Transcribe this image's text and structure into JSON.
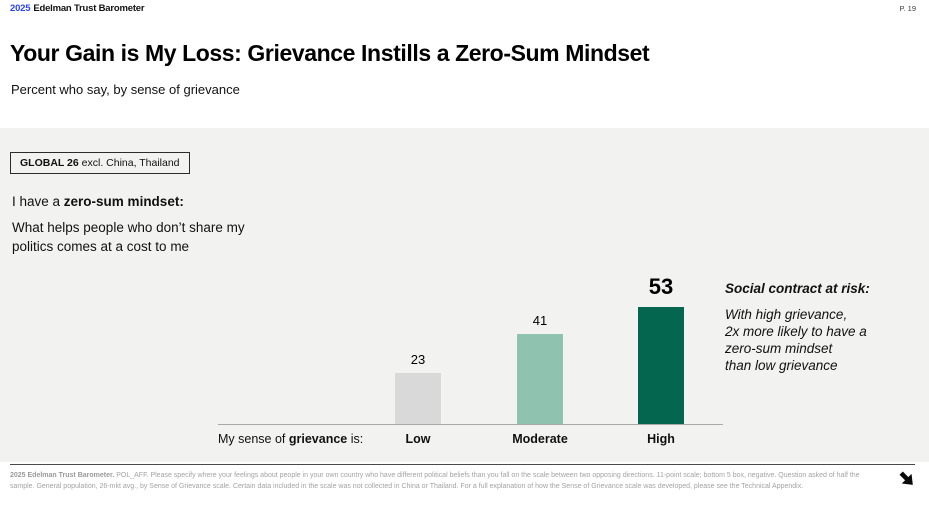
{
  "header": {
    "year": "2025",
    "brand": "Edelman Trust Barometer",
    "page_number": "P. 19"
  },
  "title": "Your Gain is My Loss: Grievance Instills a Zero-Sum Mindset",
  "subtitle": "Percent who say, by sense of grievance",
  "scope_badge": {
    "label": "GLOBAL 26",
    "suffix": " excl. China, Thailand"
  },
  "statement": {
    "prefix": "I have a ",
    "emphasis": "zero-sum mindset:",
    "description": "What helps people who don’t share my politics comes at a cost to me"
  },
  "chart_data": {
    "type": "bar",
    "categories": [
      "Low",
      "Moderate",
      "High"
    ],
    "values": [
      23,
      41,
      53
    ],
    "colors": [
      "#d9d9d9",
      "#8fc3b0",
      "#04664e"
    ],
    "title": "Percent who say they have a zero-sum mindset",
    "xlabel": "My sense of grievance is:",
    "ylabel": "",
    "ylim": [
      0,
      60
    ],
    "grid": false,
    "legend": "none",
    "value_labels": true
  },
  "axis_caption": {
    "prefix": "My sense of ",
    "emphasis": "grievance",
    "suffix": " is:"
  },
  "annotation": {
    "heading": "Social contract at risk:",
    "body": "With high grievance,\n2x more likely to have a\nzero-sum mindset\nthan low grievance"
  },
  "footer": {
    "source_bold": "2025 Edelman Trust Barometer.",
    "text": " POL_AFF. Please specify where your feelings about people in your own country who have different political beliefs than you fall on the scale between two opposing directions. 11-point scale; bottom 5 box, negative. Question asked of half the sample. General population, 26-mkt avg., by Sense of Grievance scale. Certain data included in the scale was not collected in China or Thailand. For a full explanation of how the Sense of Grievance scale was developed, please see the Technical Appendix."
  },
  "icons": {
    "footer_arrow": "arrow-down-right-icon"
  },
  "colors": {
    "accent_blue": "#2b45f5",
    "band_background": "#f2f2f1",
    "footer_text": "#a3a3a3"
  }
}
